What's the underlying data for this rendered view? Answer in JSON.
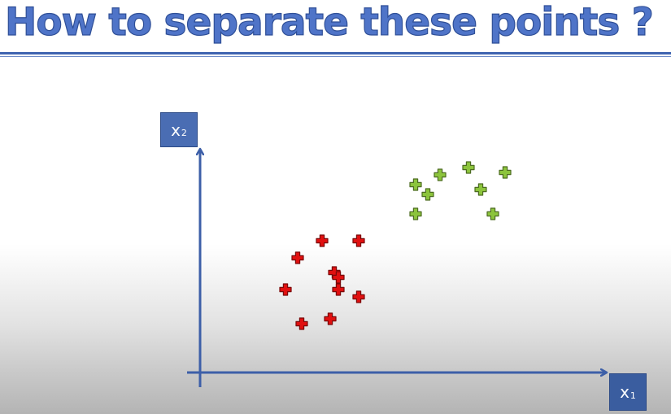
{
  "title": "How to separate these points ?",
  "chart_data": {
    "type": "scatter",
    "xlabel": "x",
    "xlabel_sub": "1",
    "ylabel": "x",
    "ylabel_sub": "2",
    "xlim": [
      0,
      100
    ],
    "ylim": [
      0,
      100
    ],
    "grid": false,
    "marker": "plus",
    "series": [
      {
        "color": "#e01010",
        "points": [
          [
            30,
            54
          ],
          [
            39,
            54
          ],
          [
            24,
            47
          ],
          [
            33,
            41
          ],
          [
            34,
            39
          ],
          [
            21,
            34
          ],
          [
            34,
            34
          ],
          [
            39,
            31
          ],
          [
            25,
            20
          ],
          [
            32,
            22
          ]
        ]
      },
      {
        "color": "#8cc43c",
        "points": [
          [
            66,
            84
          ],
          [
            59,
            81
          ],
          [
            75,
            82
          ],
          [
            53,
            77
          ],
          [
            69,
            75
          ],
          [
            56,
            73
          ],
          [
            53,
            65
          ],
          [
            72,
            65
          ]
        ]
      }
    ]
  }
}
